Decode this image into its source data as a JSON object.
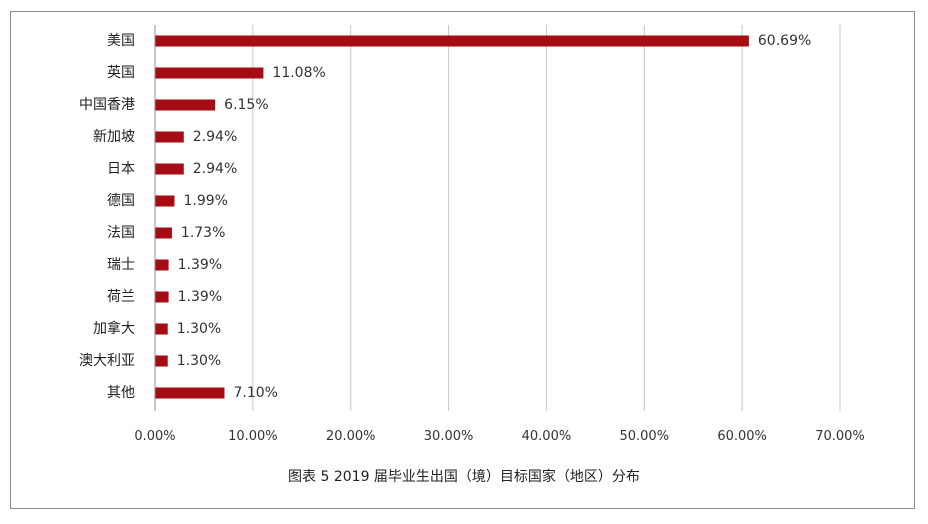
{
  "chart_data": {
    "type": "bar",
    "orientation": "horizontal",
    "title": "图表 5 2019 届毕业生出国（境）目标国家（地区）分布",
    "xlabel": "",
    "ylabel": "",
    "categories": [
      "美国",
      "英国",
      "中国香港",
      "新加坡",
      "日本",
      "德国",
      "法国",
      "瑞士",
      "荷兰",
      "加拿大",
      "澳大利亚",
      "其他"
    ],
    "values": [
      60.69,
      11.08,
      6.15,
      2.94,
      2.94,
      1.99,
      1.73,
      1.39,
      1.39,
      1.3,
      1.3,
      7.1
    ],
    "value_labels": [
      "60.69%",
      "11.08%",
      "6.15%",
      "2.94%",
      "2.94%",
      "1.99%",
      "1.73%",
      "1.39%",
      "1.39%",
      "1.30%",
      "1.30%",
      "7.10%"
    ],
    "xlim": [
      0,
      70
    ],
    "x_ticks": [
      0,
      10,
      20,
      30,
      40,
      50,
      60,
      70
    ],
    "x_tick_labels": [
      "0.00%",
      "10.00%",
      "20.00%",
      "30.00%",
      "40.00%",
      "50.00%",
      "60.00%",
      "70.00%"
    ],
    "grid": "vertical",
    "legend": "none",
    "bar_color": "#A50D12",
    "grid_color": "#c8c8c8",
    "axis_color": "#8c8c8c"
  }
}
